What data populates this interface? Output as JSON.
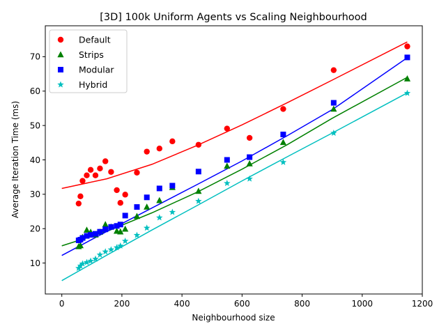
{
  "chart_data": {
    "type": "scatter",
    "title": "[3D] 100k Uniform Agents vs Scaling Neighbourhood",
    "xlabel": "Neighbourhood size",
    "ylabel": "Average Iteration Time (ms)",
    "xlim": [
      -55,
      1200
    ],
    "ylim": [
      1,
      79
    ],
    "xticks": [
      0,
      200,
      400,
      600,
      800,
      1000,
      1200
    ],
    "yticks": [
      10,
      20,
      30,
      40,
      50,
      60,
      70
    ],
    "grid": false,
    "legend_position": "top-left",
    "series": [
      {
        "name": "Default",
        "color": "#ff0000",
        "marker": "circle",
        "points": [
          [
            56,
            27.3
          ],
          [
            62,
            29.4
          ],
          [
            69,
            33.9
          ],
          [
            83,
            35.5
          ],
          [
            96,
            37.1
          ],
          [
            112,
            35.5
          ],
          [
            127,
            37.5
          ],
          [
            145,
            39.6
          ],
          [
            164,
            36.5
          ],
          [
            183,
            31.2
          ],
          [
            195,
            27.5
          ],
          [
            211,
            29.9
          ],
          [
            250,
            36.3
          ],
          [
            283,
            42.4
          ],
          [
            325,
            43.3
          ],
          [
            368,
            45.4
          ],
          [
            455,
            44.4
          ],
          [
            550,
            49.1
          ],
          [
            625,
            46.4
          ],
          [
            737,
            54.8
          ],
          [
            905,
            66.1
          ],
          [
            1150,
            73
          ]
        ],
        "fit": [
          [
            0,
            31.7
          ],
          [
            150,
            34.5
          ],
          [
            300,
            38.7
          ],
          [
            450,
            44.2
          ],
          [
            600,
            50.2
          ],
          [
            750,
            56.6
          ],
          [
            900,
            63.2
          ],
          [
            1150,
            74.3
          ]
        ]
      },
      {
        "name": "Strips",
        "color": "#008000",
        "marker": "triangle",
        "points": [
          [
            56,
            14.8
          ],
          [
            62,
            15.1
          ],
          [
            69,
            17.5
          ],
          [
            83,
            19.6
          ],
          [
            96,
            19
          ],
          [
            112,
            18.2
          ],
          [
            127,
            19
          ],
          [
            145,
            21.2
          ],
          [
            164,
            20.5
          ],
          [
            183,
            19.3
          ],
          [
            195,
            19.1
          ],
          [
            211,
            19.9
          ],
          [
            250,
            23.6
          ],
          [
            283,
            26.3
          ],
          [
            325,
            28.2
          ],
          [
            368,
            32
          ],
          [
            455,
            30.9
          ],
          [
            550,
            38.2
          ],
          [
            625,
            38.9
          ],
          [
            737,
            45.1
          ],
          [
            905,
            54.8
          ],
          [
            1150,
            63.6
          ]
        ],
        "fit": [
          [
            0,
            15
          ],
          [
            150,
            19.2
          ],
          [
            300,
            24.6
          ],
          [
            450,
            30.6
          ],
          [
            600,
            37.3
          ],
          [
            750,
            44.4
          ],
          [
            900,
            52.1
          ],
          [
            1150,
            64
          ]
        ]
      },
      {
        "name": "Modular",
        "color": "#0000ff",
        "marker": "square",
        "points": [
          [
            56,
            16.6
          ],
          [
            62,
            16.8
          ],
          [
            69,
            17.3
          ],
          [
            83,
            17.9
          ],
          [
            96,
            18.2
          ],
          [
            112,
            18.5
          ],
          [
            127,
            19.1
          ],
          [
            145,
            19.8
          ],
          [
            164,
            20.5
          ],
          [
            183,
            20.8
          ],
          [
            195,
            21.2
          ],
          [
            211,
            23.8
          ],
          [
            250,
            26.3
          ],
          [
            283,
            29.1
          ],
          [
            325,
            31.7
          ],
          [
            368,
            32.5
          ],
          [
            455,
            36.6
          ],
          [
            550,
            40
          ],
          [
            625,
            40.8
          ],
          [
            737,
            47.4
          ],
          [
            905,
            56.6
          ],
          [
            1150,
            69.8
          ]
        ],
        "fit": [
          [
            0,
            12.2
          ],
          [
            150,
            19.2
          ],
          [
            300,
            26
          ],
          [
            450,
            32.8
          ],
          [
            600,
            39.7
          ],
          [
            750,
            47
          ],
          [
            900,
            54.6
          ],
          [
            1150,
            69.7
          ]
        ]
      },
      {
        "name": "Hybrid",
        "color": "#00bfbf",
        "marker": "star",
        "points": [
          [
            56,
            8.5
          ],
          [
            62,
            9.2
          ],
          [
            69,
            9.8
          ],
          [
            83,
            10.2
          ],
          [
            96,
            10.6
          ],
          [
            112,
            11.2
          ],
          [
            127,
            12.4
          ],
          [
            145,
            13.3
          ],
          [
            164,
            13.9
          ],
          [
            183,
            14.5
          ],
          [
            195,
            15
          ],
          [
            211,
            16.4
          ],
          [
            250,
            18.1
          ],
          [
            283,
            20.2
          ],
          [
            325,
            23.2
          ],
          [
            368,
            24.8
          ],
          [
            455,
            28
          ],
          [
            550,
            33.2
          ],
          [
            625,
            34.5
          ],
          [
            737,
            39.3
          ],
          [
            905,
            47.8
          ],
          [
            1150,
            59.4
          ]
        ],
        "fit": [
          [
            0,
            4.9
          ],
          [
            150,
            12.3
          ],
          [
            300,
            19.6
          ],
          [
            450,
            26.7
          ],
          [
            600,
            33.9
          ],
          [
            750,
            40.9
          ],
          [
            900,
            47.8
          ],
          [
            1150,
            59.5
          ]
        ]
      }
    ]
  }
}
